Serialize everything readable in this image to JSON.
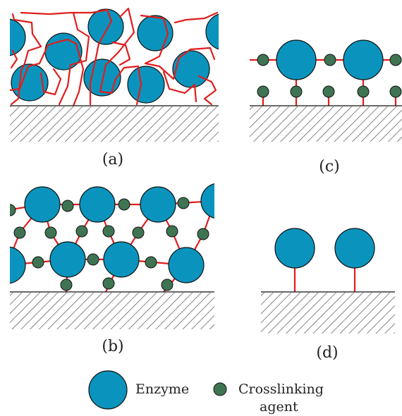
{
  "panels": {
    "a": {
      "label": "(a)"
    },
    "b": {
      "label": "(b)"
    },
    "c": {
      "label": "(c)"
    },
    "d": {
      "label": "(d)"
    }
  },
  "legend": {
    "enzyme": "Enzyme",
    "crosslinker_line1": "Crosslinking",
    "crosslinker_line2": "agent"
  },
  "colors": {
    "enzyme": "#0a94bd",
    "crosslinker": "#3f7452",
    "chain": "#e11d1d",
    "outline": "#111111"
  }
}
